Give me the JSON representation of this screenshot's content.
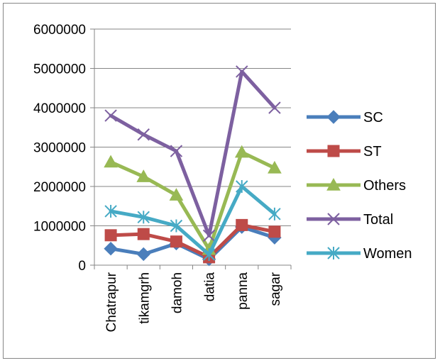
{
  "chart_data": {
    "type": "line",
    "title": "",
    "xlabel": "",
    "ylabel": "",
    "categories": [
      "Chatrapur",
      "tikamgrh",
      "damoh",
      "datia",
      "panna",
      "sagar"
    ],
    "ylim": [
      0,
      6000000
    ],
    "yticks": [
      0,
      1000000,
      2000000,
      3000000,
      4000000,
      5000000,
      6000000
    ],
    "ytick_labels": [
      "0",
      "1000000",
      "2000000",
      "3000000",
      "4000000",
      "5000000",
      "6000000"
    ],
    "grid": true,
    "legend": "right",
    "series": [
      {
        "name": "SC",
        "color": "#4A7EBB",
        "marker": "diamond",
        "values": [
          420000,
          280000,
          550000,
          150000,
          970000,
          700000
        ]
      },
      {
        "name": "ST",
        "color": "#BE4B48",
        "marker": "square",
        "values": [
          760000,
          790000,
          600000,
          200000,
          1020000,
          850000
        ]
      },
      {
        "name": "Others",
        "color": "#98B954",
        "marker": "triangle",
        "values": [
          2620000,
          2250000,
          1780000,
          400000,
          2870000,
          2470000
        ]
      },
      {
        "name": "Total",
        "color": "#7D60A0",
        "marker": "x",
        "values": [
          3800000,
          3320000,
          2900000,
          750000,
          4920000,
          4000000
        ]
      },
      {
        "name": "Women",
        "color": "#46AAC5",
        "marker": "asterisk",
        "values": [
          1370000,
          1220000,
          1000000,
          270000,
          2000000,
          1300000
        ]
      }
    ]
  }
}
